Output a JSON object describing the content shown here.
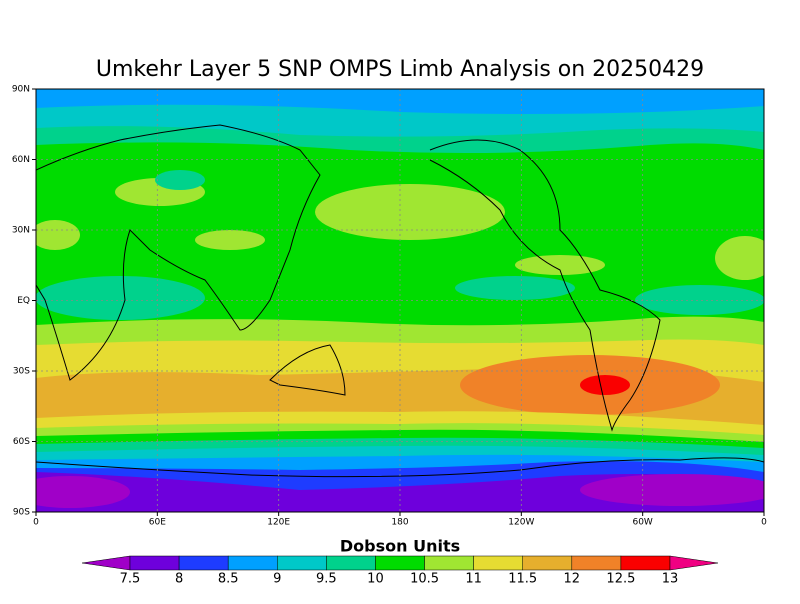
{
  "title": "Umkehr Layer 5 SNP OMPS Limb Analysis on 20250429",
  "map": {
    "xlim": [
      0,
      360
    ],
    "ylim": [
      -90,
      90
    ],
    "xticks": [
      {
        "value": 0,
        "label": "0"
      },
      {
        "value": 60,
        "label": "60E"
      },
      {
        "value": 120,
        "label": "120E"
      },
      180,
      {
        "value": 240,
        "label": "120W"
      },
      {
        "value": 300,
        "label": "60W"
      },
      {
        "value": 360,
        "label": "0"
      }
    ],
    "yticks": [
      {
        "value": 90,
        "label": "90N"
      },
      {
        "value": 60,
        "label": "60N"
      },
      {
        "value": 30,
        "label": "30N"
      },
      {
        "value": 0,
        "label": "EQ"
      },
      {
        "value": -30,
        "label": "30S"
      },
      {
        "value": -60,
        "label": "60S"
      },
      {
        "value": -90,
        "label": "90S"
      }
    ]
  },
  "colorbar": {
    "title": "Dobson Units",
    "levels": [
      7.5,
      8,
      8.5,
      9,
      9.5,
      10,
      10.5,
      11,
      11.5,
      12,
      12.5,
      13
    ],
    "colors": [
      "#a000c8",
      "#6e00dc",
      "#1e3cff",
      "#00a0ff",
      "#00c8c8",
      "#00d28c",
      "#00dc00",
      "#a0e632",
      "#e6dc32",
      "#e6af2d",
      "#f08228",
      "#fa0000",
      "#f00082"
    ]
  }
}
